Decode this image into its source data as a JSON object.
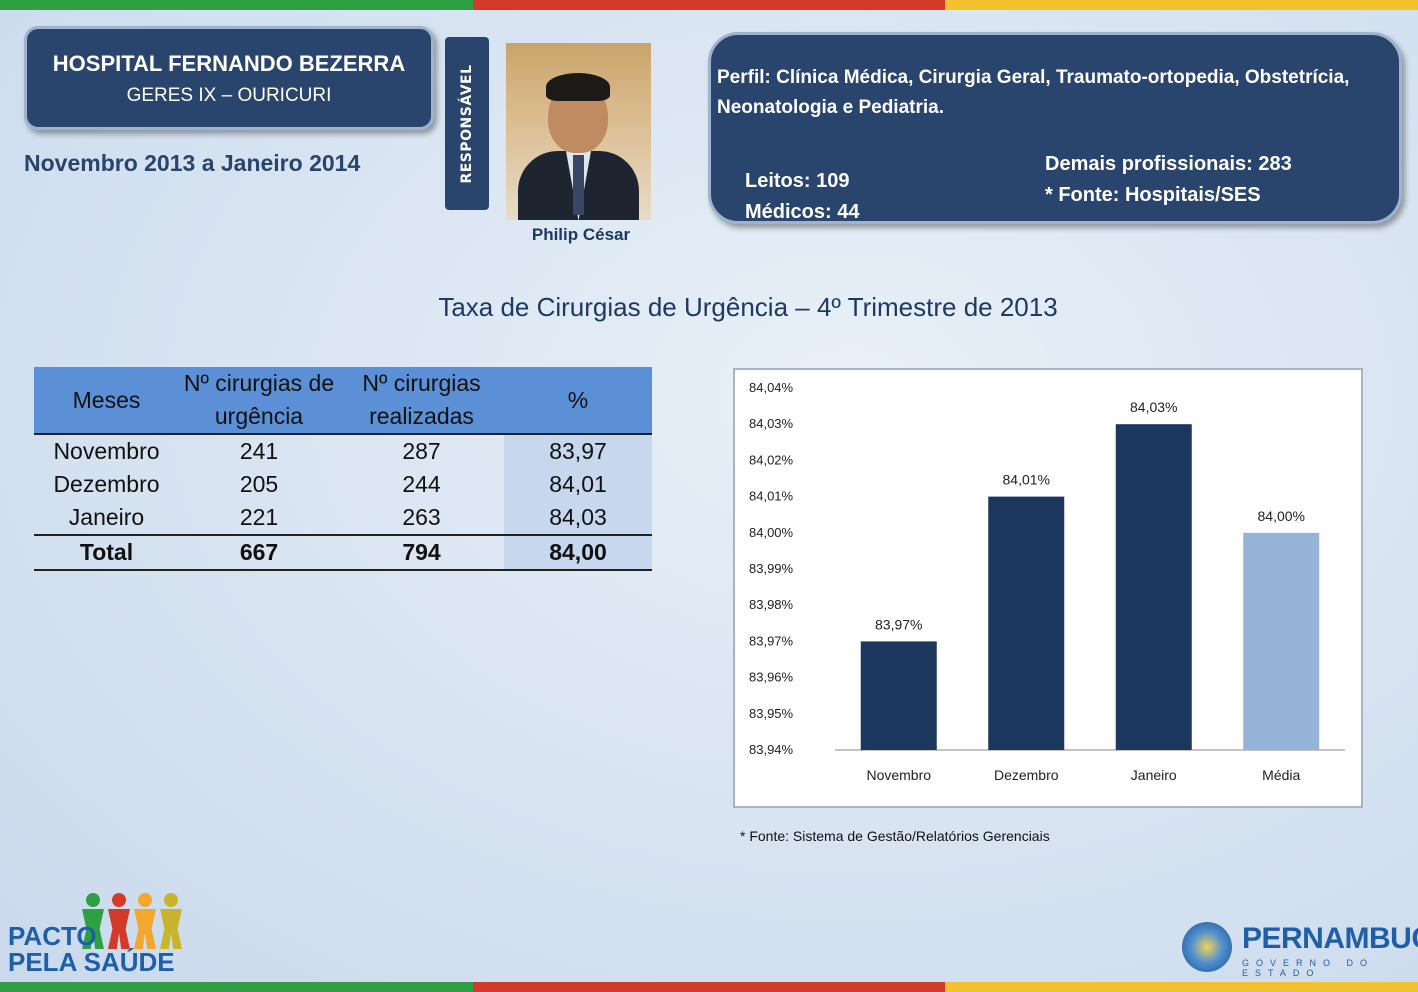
{
  "hospital": {
    "name": "HOSPITAL FERNANDO BEZERRA",
    "geres": "GERES IX – OURICURI",
    "period": "Novembro 2013 a Janeiro 2014"
  },
  "responsavel": {
    "label": "RESPONSÁVEL",
    "name": "Philip César"
  },
  "perfil": {
    "text": "Perfil: Clínica Médica, Cirurgia Geral, Traumato-ortopedia, Obstetrícia, Neonatologia e Pediatria.",
    "leitos": "Leitos: 109",
    "medicos": "Médicos: 44",
    "demais": "Demais profissionais: 283",
    "fonte": "* Fonte: Hospitais/SES"
  },
  "section_title": "Taxa de Cirurgias de Urgência – 4º Trimestre de 2013",
  "table": {
    "headers": [
      "Meses",
      "Nº cirurgias de urgência",
      "Nº cirurgias realizadas",
      "%"
    ],
    "rows": [
      [
        "Novembro",
        "241",
        "287",
        "83,97"
      ],
      [
        "Dezembro",
        "205",
        "244",
        "84,01"
      ],
      [
        "Janeiro",
        "221",
        "263",
        "84,03"
      ]
    ],
    "total": [
      "Total",
      "667",
      "794",
      "84,00"
    ]
  },
  "chart_data": {
    "type": "bar",
    "categories": [
      "Novembro",
      "Dezembro",
      "Janeiro",
      "Média"
    ],
    "values": [
      83.97,
      84.01,
      84.03,
      84.0
    ],
    "data_labels": [
      "83,97%",
      "84,01%",
      "84,03%",
      "84,00%"
    ],
    "bar_colors": [
      "#1c375e",
      "#1c375e",
      "#1c375e",
      "#94b3d6"
    ],
    "ylim": [
      83.94,
      84.04
    ],
    "yticks": [
      "83,94%",
      "83,95%",
      "83,96%",
      "83,97%",
      "83,98%",
      "83,99%",
      "84,00%",
      "84,01%",
      "84,02%",
      "84,03%",
      "84,04%"
    ],
    "title": "",
    "xlabel": "",
    "ylabel": "",
    "grid": false,
    "legend": "none"
  },
  "chart_source": "* Fonte: Sistema de Gestão/Relatórios Gerenciais",
  "logos": {
    "pacto_line1": "PACTO",
    "pacto_line2": "PELA SAÚDE",
    "pernambuco": "PERNAMBUCO",
    "governo": "GOVERNO DO ESTADO"
  },
  "colors": {
    "panel": "#29456d",
    "bar_dark": "#1c375e",
    "bar_light": "#94b3d6",
    "table_header": "#5b8fd6",
    "table_pct": "#c6d7ee"
  }
}
